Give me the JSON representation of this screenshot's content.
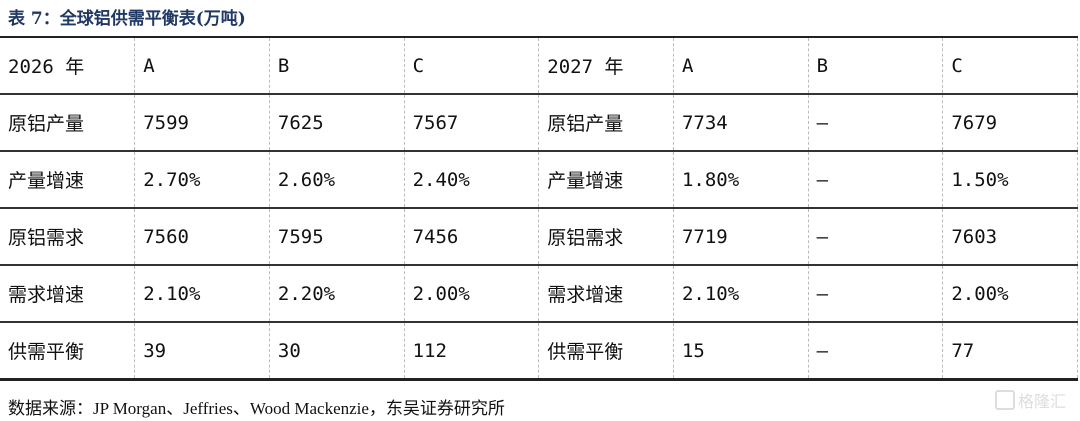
{
  "title": "表 7：全球铝供需平衡表(万吨)",
  "rows": [
    [
      "2026 年",
      "A",
      "B",
      "C",
      "2027 年",
      "A",
      "B",
      "C"
    ],
    [
      "原铝产量",
      "7599",
      "7625",
      "7567",
      "原铝产量",
      "7734",
      "—",
      "7679"
    ],
    [
      "产量增速",
      "2.70%",
      "2.60%",
      "2.40%",
      "产量增速",
      "1.80%",
      "—",
      "1.50%"
    ],
    [
      "原铝需求",
      "7560",
      "7595",
      "7456",
      "原铝需求",
      "7719",
      "—",
      "7603"
    ],
    [
      "需求增速",
      "2.10%",
      "2.20%",
      "2.00%",
      "需求增速",
      "2.10%",
      "—",
      "2.00%"
    ],
    [
      "供需平衡",
      "39",
      "30",
      "112",
      "供需平衡",
      "15",
      "—",
      "77"
    ]
  ],
  "source": "数据来源：JP Morgan、Jeffries、Wood Mackenzie，东吴证券研究所",
  "watermark": "格隆汇"
}
